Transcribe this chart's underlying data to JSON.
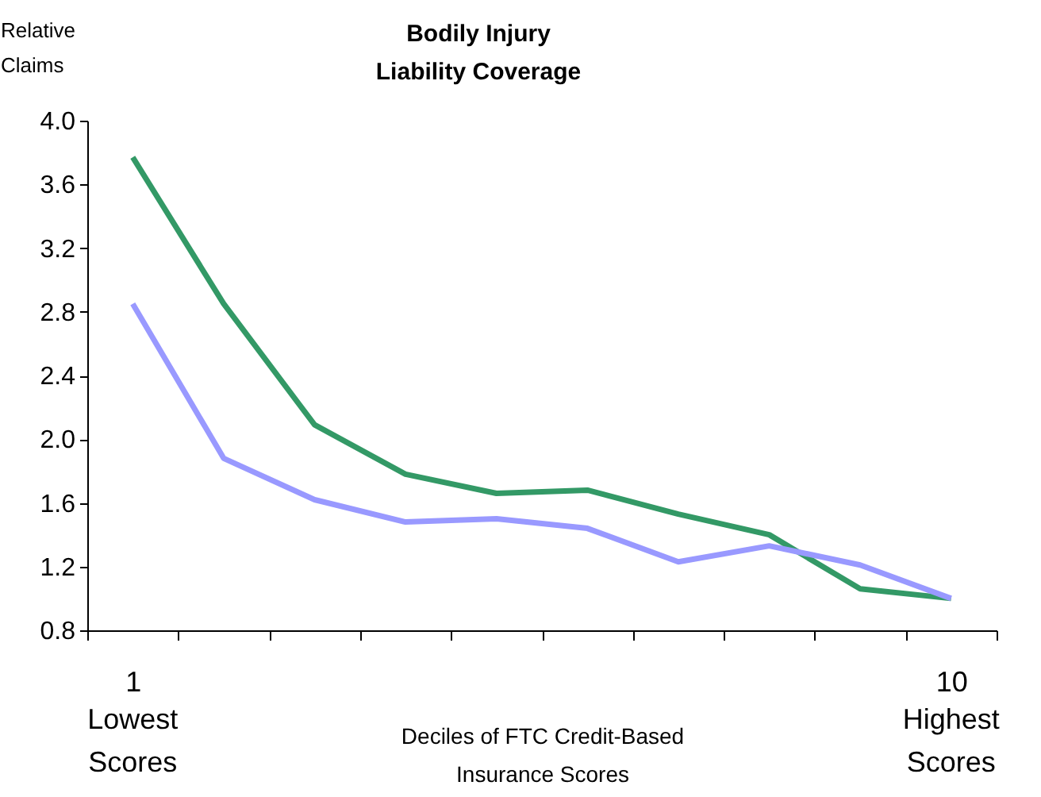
{
  "chart_data": {
    "type": "line",
    "title": "Bodily Injury Liability Coverage",
    "xlabel": "Deciles of FTC Credit-Based Insurance Scores",
    "ylabel": "Relative Claims",
    "categories": [
      "1",
      null,
      null,
      null,
      null,
      null,
      null,
      null,
      null,
      "10"
    ],
    "series": [
      {
        "color": "#339966",
        "values": [
          3.77,
          2.85,
          2.09,
          1.78,
          1.66,
          1.68,
          1.53,
          1.4,
          1.06,
          1.0
        ]
      },
      {
        "color": "#9999ff",
        "values": [
          2.85,
          1.88,
          1.62,
          1.48,
          1.5,
          1.44,
          1.23,
          1.33,
          1.21,
          1.0
        ]
      }
    ],
    "annotations": [
      "Lowest Scores",
      "Highest Scores"
    ],
    "ylim": [
      0.8,
      4.0
    ],
    "yticks": [
      0.8,
      1.2,
      1.6,
      {
        "value": 2,
        "label": "2.0"
      },
      2.4,
      2.8,
      3.2,
      3.6,
      {
        "value": 4,
        "label": "4.0"
      }
    ],
    "grid": false,
    "legend": false
  }
}
